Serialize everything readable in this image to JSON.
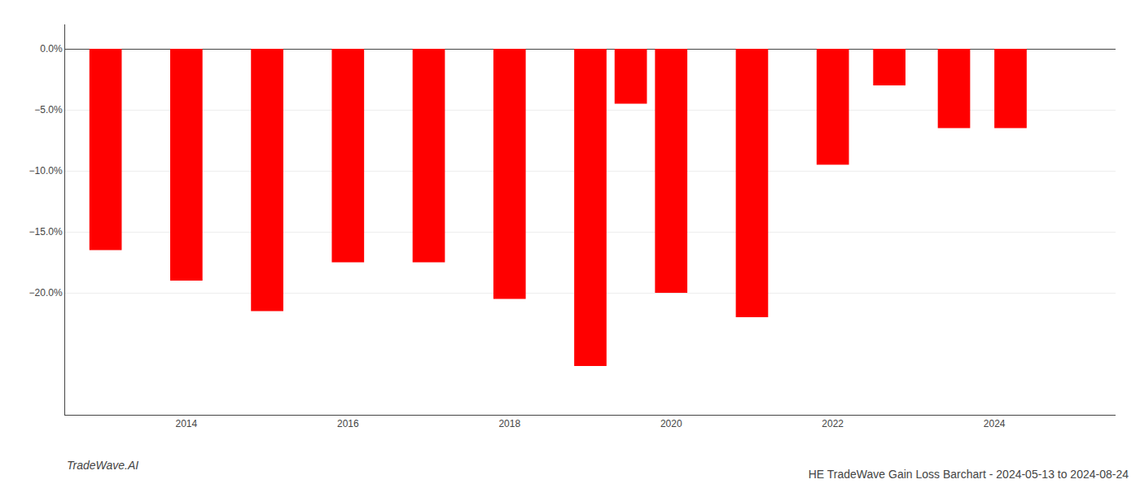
{
  "chart_data": {
    "type": "bar",
    "title": "HE TradeWave Gain Loss Barchart - 2024-05-13 to 2024-08-24",
    "annotations": [
      "TradeWave.AI"
    ],
    "x": [
      2013,
      2014,
      2015,
      2016,
      2017,
      2018,
      2019,
      2019.5,
      2020,
      2021,
      2022,
      2022.7,
      2023.5,
      2024.2
    ],
    "values": [
      -16.5,
      -19.0,
      -21.5,
      -17.5,
      -17.5,
      -20.5,
      -26.0,
      -4.5,
      -20.0,
      -22.0,
      -9.5,
      -3.0,
      -6.5,
      -6.5
    ],
    "color": "#ff0000",
    "xlim": [
      2012.5,
      2025.5
    ],
    "xticks": [
      2014,
      2016,
      2018,
      2020,
      2022,
      2024
    ],
    "ylim": [
      -30,
      2
    ],
    "yticks": [
      {
        "value": 0,
        "label": "0.0%"
      },
      {
        "value": -5,
        "label": "−5.0%"
      },
      {
        "value": -10,
        "label": "−10.0%"
      },
      {
        "value": -15,
        "label": "−15.0%"
      },
      {
        "value": -20,
        "label": "−20.0%"
      }
    ],
    "grid": true
  }
}
